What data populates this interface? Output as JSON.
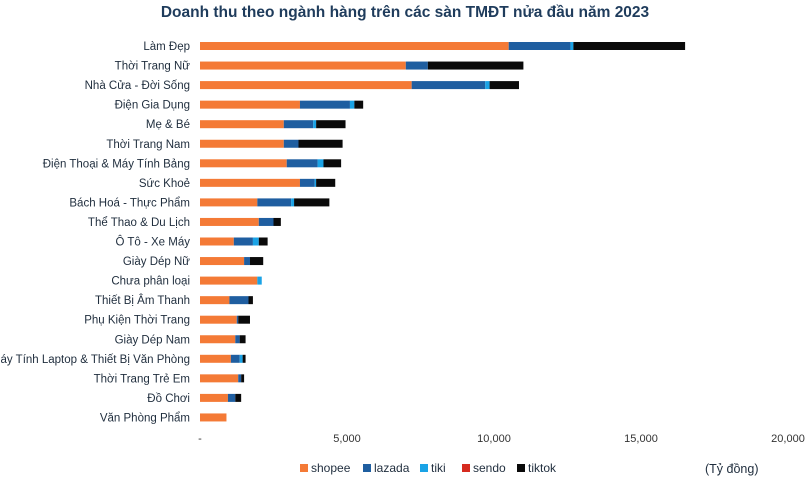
{
  "chart_data": {
    "type": "bar",
    "orientation": "horizontal",
    "stacked": true,
    "title": "Doanh thu theo ngành hàng trên các sàn TMĐT nửa đầu năm 2023",
    "unit_label": "(Tỷ đồng)",
    "xlim": [
      0,
      20000
    ],
    "x_ticks": [
      {
        "value": 0,
        "label": "-"
      },
      {
        "value": 5000,
        "label": "5,000"
      },
      {
        "value": 10000,
        "label": "10,000"
      },
      {
        "value": 15000,
        "label": "15,000"
      },
      {
        "value": 20000,
        "label": "20,000"
      }
    ],
    "grid": false,
    "legend_position": "bottom",
    "categories": [
      "Làm Đẹp",
      "Thời Trang Nữ",
      "Nhà Cửa - Đời Sống",
      "Điện Gia Dụng",
      "Mẹ & Bé",
      "Thời Trang Nam",
      "Điện Thoại & Máy Tính Bảng",
      "Sức Khoẻ",
      "Bách Hoá - Thực Phẩm",
      "Thể Thao & Du Lịch",
      "Ô Tô - Xe Máy",
      "Giày Dép Nữ",
      "Chưa phân loại",
      "Thiết Bị Âm Thanh",
      "Phụ Kiện Thời Trang",
      "Giày Dép Nam",
      "Máy Tính  Laptop & Thiết Bị Văn Phòng",
      "Thời Trang Trẻ Em",
      "Đồ Chơi",
      "Văn Phòng Phẩm"
    ],
    "series": [
      {
        "name": "shopee",
        "color": "#f47a36",
        "values": [
          10500,
          7000,
          7200,
          3400,
          2850,
          2850,
          2950,
          3400,
          1950,
          2000,
          1150,
          1500,
          1950,
          1000,
          1250,
          1200,
          1050,
          1300,
          950,
          900
        ]
      },
      {
        "name": "lazada",
        "color": "#1f5ea0",
        "values": [
          2100,
          750,
          2500,
          1700,
          1000,
          500,
          1050,
          500,
          1150,
          500,
          650,
          200,
          0,
          650,
          50,
          150,
          300,
          100,
          250,
          0
        ]
      },
      {
        "name": "tiki",
        "color": "#1aa3e6",
        "values": [
          100,
          0,
          150,
          150,
          100,
          0,
          200,
          50,
          100,
          0,
          200,
          0,
          150,
          0,
          0,
          0,
          100,
          0,
          0,
          0
        ]
      },
      {
        "name": "sendo",
        "color": "#d62b1f",
        "values": [
          0,
          0,
          0,
          0,
          0,
          0,
          0,
          0,
          0,
          0,
          0,
          0,
          0,
          0,
          0,
          0,
          0,
          0,
          0,
          0
        ]
      },
      {
        "name": "tiktok",
        "color": "#0a0a0a",
        "values": [
          3800,
          3250,
          1000,
          300,
          1000,
          1500,
          600,
          650,
          1200,
          250,
          300,
          450,
          0,
          150,
          400,
          200,
          100,
          100,
          200,
          0
        ]
      }
    ]
  }
}
